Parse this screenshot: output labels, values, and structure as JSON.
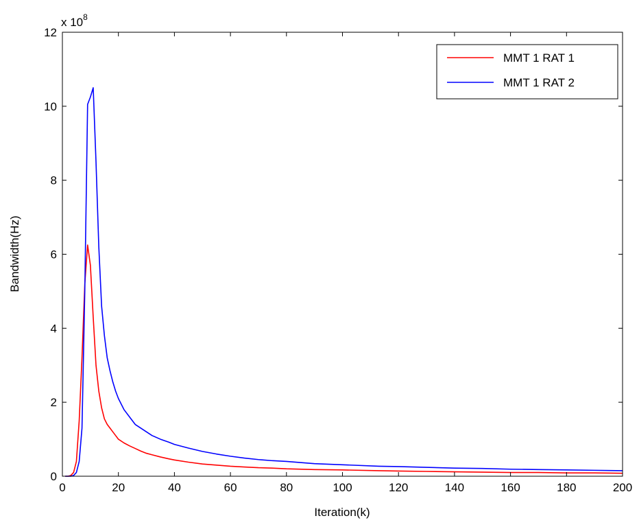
{
  "chart_data": {
    "type": "line",
    "title": "",
    "xlabel": "Iteration(k)",
    "ylabel": "Bandwidth(Hz)",
    "y_exponent_label": "x 10",
    "y_exponent_power": "8",
    "y_scale": 100000000,
    "xlim": [
      0,
      200
    ],
    "ylim": [
      0,
      12
    ],
    "xticks": [
      0,
      20,
      40,
      60,
      80,
      100,
      120,
      140,
      160,
      180,
      200
    ],
    "yticks": [
      0,
      2,
      4,
      6,
      8,
      10,
      12
    ],
    "grid": false,
    "legend_position": "top-right",
    "series": [
      {
        "name": "MMT 1 RAT 1",
        "color": "#ff0000",
        "x": [
          1,
          2,
          3,
          4,
          5,
          6,
          7,
          8,
          9,
          10,
          11,
          12,
          13,
          14,
          15,
          16,
          17,
          18,
          19,
          20,
          22,
          24,
          26,
          28,
          30,
          32,
          35,
          38,
          40,
          45,
          50,
          55,
          60,
          65,
          70,
          75,
          80,
          90,
          100,
          113,
          120,
          130,
          140,
          150,
          160,
          170,
          180,
          190,
          200
        ],
        "y": [
          0,
          0,
          0.02,
          0.1,
          0.4,
          1.5,
          3.2,
          5.2,
          6.25,
          5.7,
          4.3,
          3.0,
          2.3,
          1.85,
          1.55,
          1.4,
          1.3,
          1.2,
          1.1,
          1.0,
          0.9,
          0.82,
          0.75,
          0.68,
          0.62,
          0.58,
          0.52,
          0.47,
          0.44,
          0.38,
          0.33,
          0.3,
          0.27,
          0.25,
          0.23,
          0.22,
          0.2,
          0.18,
          0.17,
          0.15,
          0.14,
          0.13,
          0.12,
          0.11,
          0.1,
          0.1,
          0.09,
          0.09,
          0.08
        ]
      },
      {
        "name": "MMT 1 RAT 2",
        "color": "#0000ff",
        "x": [
          1,
          2,
          3,
          4,
          5,
          6,
          7,
          8,
          9,
          10,
          11,
          12,
          13,
          14,
          15,
          16,
          17,
          18,
          19,
          20,
          22,
          24,
          26,
          28,
          30,
          32,
          35,
          38,
          40,
          45,
          50,
          55,
          60,
          65,
          70,
          75,
          80,
          90,
          100,
          113,
          120,
          130,
          140,
          150,
          160,
          170,
          180,
          190,
          200
        ],
        "y": [
          0,
          0,
          0,
          0.02,
          0.1,
          0.4,
          1.3,
          5.0,
          10.05,
          10.25,
          10.5,
          8.5,
          6.2,
          4.6,
          3.8,
          3.2,
          2.85,
          2.55,
          2.3,
          2.1,
          1.8,
          1.6,
          1.4,
          1.3,
          1.2,
          1.1,
          1.0,
          0.92,
          0.86,
          0.76,
          0.67,
          0.6,
          0.54,
          0.49,
          0.45,
          0.42,
          0.4,
          0.34,
          0.31,
          0.27,
          0.26,
          0.24,
          0.22,
          0.21,
          0.19,
          0.18,
          0.17,
          0.16,
          0.15
        ]
      }
    ]
  }
}
